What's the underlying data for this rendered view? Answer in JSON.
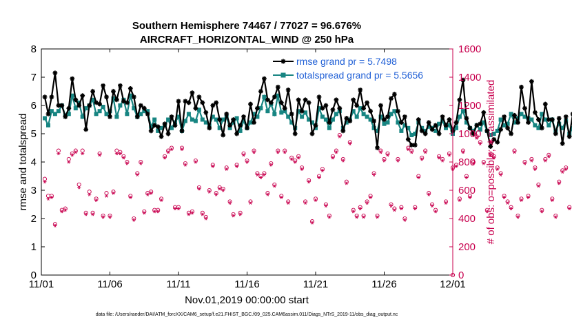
{
  "chart_data": {
    "type": "line",
    "title": "Southern Hemisphere 74467 / 77027 = 96.676%",
    "subtitle": "AIRCRAFT_HORIZONTAL_WIND @ 250 hPa",
    "xlabel": "Nov.01,2019 00:00:00 start",
    "ylabel_left": "rmse and totalspread",
    "ylabel_right": "# of obs: o=possible; ∗=assimilated",
    "x_ticks": [
      "11/01",
      "11/06",
      "11/11",
      "11/16",
      "11/21",
      "11/26",
      "12/01"
    ],
    "y_left_ticks": [
      "0",
      "1",
      "2",
      "3",
      "4",
      "5",
      "6",
      "7",
      "8"
    ],
    "y_right_ticks": [
      "0",
      "200",
      "400",
      "600",
      "800",
      "1000",
      "1200",
      "1400",
      "1600"
    ],
    "ylim_left": [
      0,
      8
    ],
    "ylim_right": [
      0,
      1600
    ],
    "xlim_days": [
      0,
      30
    ],
    "footnote": "data file: /Users/raeder/DAI/ATM_forcXX/CAM6_setup/f.e21.FHIST_BGC.f09_025.CAM6assim.011/Diags_NTrS_2019-11/obs_diag_output.nc",
    "colors": {
      "rmse": "#000000",
      "spread": "#178582",
      "obs": "#c8004e",
      "legend_text": "#1f5fd6",
      "right_axis": "#c8004e"
    },
    "series": [
      {
        "name": "rmse grand pr = 5.7498",
        "axis": "left",
        "t_start": 0.25,
        "t_step": 0.25,
        "values": [
          6.3,
          5.7,
          6.3,
          7.15,
          6.0,
          6.0,
          5.6,
          5.9,
          6.95,
          6.2,
          6.0,
          6.35,
          5.15,
          6.0,
          6.5,
          6.1,
          6.05,
          6.7,
          6.3,
          5.6,
          6.5,
          6.2,
          6.7,
          6.15,
          6.1,
          6.6,
          6.3,
          5.6,
          6.0,
          5.9,
          5.7,
          5.1,
          5.3,
          5.25,
          4.9,
          5.35,
          5.0,
          5.6,
          5.3,
          6.15,
          5.1,
          6.15,
          6.1,
          6.45,
          5.9,
          6.3,
          6.1,
          5.75,
          5.2,
          6.0,
          6.1,
          5.5,
          4.95,
          5.7,
          5.3,
          5.5,
          5.0,
          5.3,
          5.6,
          5.2,
          6.05,
          5.4,
          5.9,
          6.5,
          6.95,
          6.2,
          6.1,
          6.3,
          6.65,
          6.1,
          5.9,
          6.55,
          5.7,
          5.0,
          6.2,
          5.8,
          6.2,
          6.1,
          5.0,
          5.3,
          6.3,
          5.9,
          6.0,
          5.4,
          5.85,
          6.2,
          5.9,
          5.1,
          5.55,
          5.45,
          6.2,
          6.0,
          6.55,
          5.9,
          6.1,
          5.8,
          5.45,
          4.5,
          6.0,
          5.5,
          5.6,
          6.25,
          6.4,
          5.8,
          5.4,
          5.6,
          4.8,
          4.6,
          4.6,
          5.5,
          5.1,
          5.0,
          5.4,
          5.15,
          5.3,
          5.0,
          5.6,
          5.3,
          5.5,
          5.1,
          5.4,
          6.2,
          6.9,
          5.55,
          5.2,
          5.0,
          5.3,
          5.35,
          5.75,
          5.1,
          4.55,
          4.8,
          4.7,
          5.15,
          5.6,
          5.2,
          5.0,
          5.65,
          5.4,
          6.65,
          5.9,
          5.4,
          6.85,
          5.75,
          5.5,
          5.2,
          6.05,
          5.5,
          5.5,
          5.0,
          5.55,
          4.65,
          5.6,
          4.9,
          5.7,
          4.55,
          5.75,
          6.25,
          6.5,
          6.65
        ]
      },
      {
        "name": "totalspread grand pr = 5.5656",
        "axis": "left",
        "t_start": 0.25,
        "t_step": 0.25,
        "values": [
          5.55,
          5.3,
          5.8,
          5.7,
          5.8,
          6.0,
          5.65,
          5.7,
          6.35,
          5.9,
          6.1,
          5.6,
          5.9,
          6.0,
          6.2,
          5.7,
          5.8,
          5.95,
          5.7,
          5.8,
          6.25,
          5.6,
          6.0,
          6.2,
          5.7,
          6.35,
          5.9,
          5.6,
          5.7,
          5.8,
          5.8,
          5.25,
          5.5,
          5.1,
          5.2,
          5.3,
          5.5,
          5.2,
          5.4,
          5.6,
          5.1,
          5.45,
          5.7,
          5.5,
          5.45,
          5.85,
          5.5,
          5.4,
          5.3,
          5.6,
          5.5,
          5.2,
          5.5,
          5.6,
          5.2,
          5.4,
          5.55,
          5.1,
          5.45,
          5.2,
          5.4,
          5.7,
          5.6,
          5.9,
          6.3,
          5.8,
          6.05,
          5.7,
          6.35,
          5.75,
          5.8,
          5.6,
          5.4,
          5.2,
          5.8,
          5.6,
          5.75,
          5.5,
          5.4,
          5.2,
          5.9,
          5.6,
          5.5,
          5.2,
          5.5,
          5.7,
          5.8,
          5.2,
          5.4,
          5.5,
          5.8,
          5.6,
          5.9,
          5.7,
          5.6,
          5.5,
          5.2,
          5.1,
          5.6,
          5.35,
          5.4,
          5.7,
          5.8,
          5.4,
          5.1,
          5.3,
          5.2,
          4.95,
          5.0,
          5.4,
          5.2,
          5.1,
          5.25,
          5.2,
          5.1,
          5.35,
          5.45,
          5.2,
          5.3,
          5.0,
          5.2,
          5.6,
          5.8,
          5.4,
          5.2,
          5.1,
          5.3,
          5.15,
          5.4,
          5.1,
          4.95,
          5.0,
          5.1,
          5.5,
          5.3,
          5.35,
          5.7,
          5.4,
          5.55,
          5.7,
          5.6,
          5.55,
          5.5,
          5.3,
          5.2,
          5.7,
          5.5,
          5.3,
          5.5,
          5.1,
          5.35,
          5.2,
          5.45,
          5.0,
          5.2,
          5.4,
          5.7,
          5.9
        ]
      },
      {
        "name": "obs possible (o)",
        "axis": "right",
        "t_start": 0.25,
        "t_step": 0.25,
        "values": [
          680,
          560,
          560,
          360,
          880,
          460,
          470,
          820,
          860,
          880,
          640,
          880,
          440,
          590,
          440,
          540,
          860,
          420,
          580,
          420,
          590,
          880,
          870,
          840,
          800,
          560,
          400,
          720,
          800,
          450,
          580,
          590,
          460,
          460,
          540,
          840,
          880,
          900,
          480,
          480,
          900,
          790,
          440,
          450,
          810,
          620,
          440,
          410,
          600,
          780,
          580,
          620,
          610,
          760,
          520,
          430,
          780,
          440,
          860,
          810,
          520,
          880,
          720,
          700,
          720,
          580,
          790,
          640,
          880,
          560,
          880,
          520,
          830,
          810,
          840,
          760,
          520,
          670,
          380,
          540,
          700,
          750,
          500,
          420,
          840,
          880,
          990,
          820,
          660,
          940,
          460,
          420,
          480,
          420,
          520,
          560,
          720,
          420,
          880,
          820,
          860,
          500,
          470,
          820,
          480,
          400,
          900,
          880,
          480,
          700,
          830,
          880,
          580,
          500,
          460,
          840,
          820,
          520,
          860,
          760,
          780,
          540,
          880,
          700,
          560,
          800,
          980,
          940,
          800,
          460,
          860,
          840,
          760,
          720,
          560,
          520,
          480,
          880,
          420,
          540,
          800,
          560,
          820,
          760,
          640,
          460,
          820,
          850,
          540,
          420,
          660,
          740,
          760,
          480
        ]
      },
      {
        "name": "obs assimilated (*)",
        "axis": "right",
        "t_start": 0.25,
        "t_step": 0.25,
        "values": [
          660,
          540,
          550,
          350,
          860,
          450,
          460,
          800,
          850,
          870,
          620,
          860,
          430,
          570,
          430,
          530,
          850,
          410,
          560,
          410,
          580,
          860,
          860,
          830,
          790,
          550,
          390,
          710,
          790,
          440,
          570,
          580,
          450,
          450,
          530,
          830,
          870,
          890,
          470,
          470,
          890,
          780,
          430,
          440,
          800,
          610,
          430,
          400,
          590,
          770,
          570,
          610,
          600,
          750,
          510,
          420,
          770,
          430,
          850,
          800,
          510,
          870,
          710,
          690,
          710,
          570,
          780,
          630,
          870,
          550,
          870,
          510,
          820,
          800,
          830,
          750,
          510,
          660,
          370,
          530,
          690,
          740,
          490,
          410,
          830,
          870,
          980,
          810,
          650,
          930,
          450,
          410,
          470,
          410,
          510,
          550,
          710,
          410,
          870,
          810,
          850,
          490,
          460,
          810,
          470,
          390,
          890,
          870,
          470,
          690,
          820,
          870,
          570,
          490,
          450,
          830,
          810,
          510,
          850,
          750,
          770,
          530,
          870,
          690,
          550,
          790,
          970,
          930,
          790,
          450,
          850,
          830,
          750,
          710,
          550,
          510,
          470,
          870,
          410,
          530,
          790,
          550,
          810,
          750,
          630,
          450,
          810,
          840,
          530,
          410,
          650,
          730,
          750,
          470
        ]
      }
    ]
  }
}
